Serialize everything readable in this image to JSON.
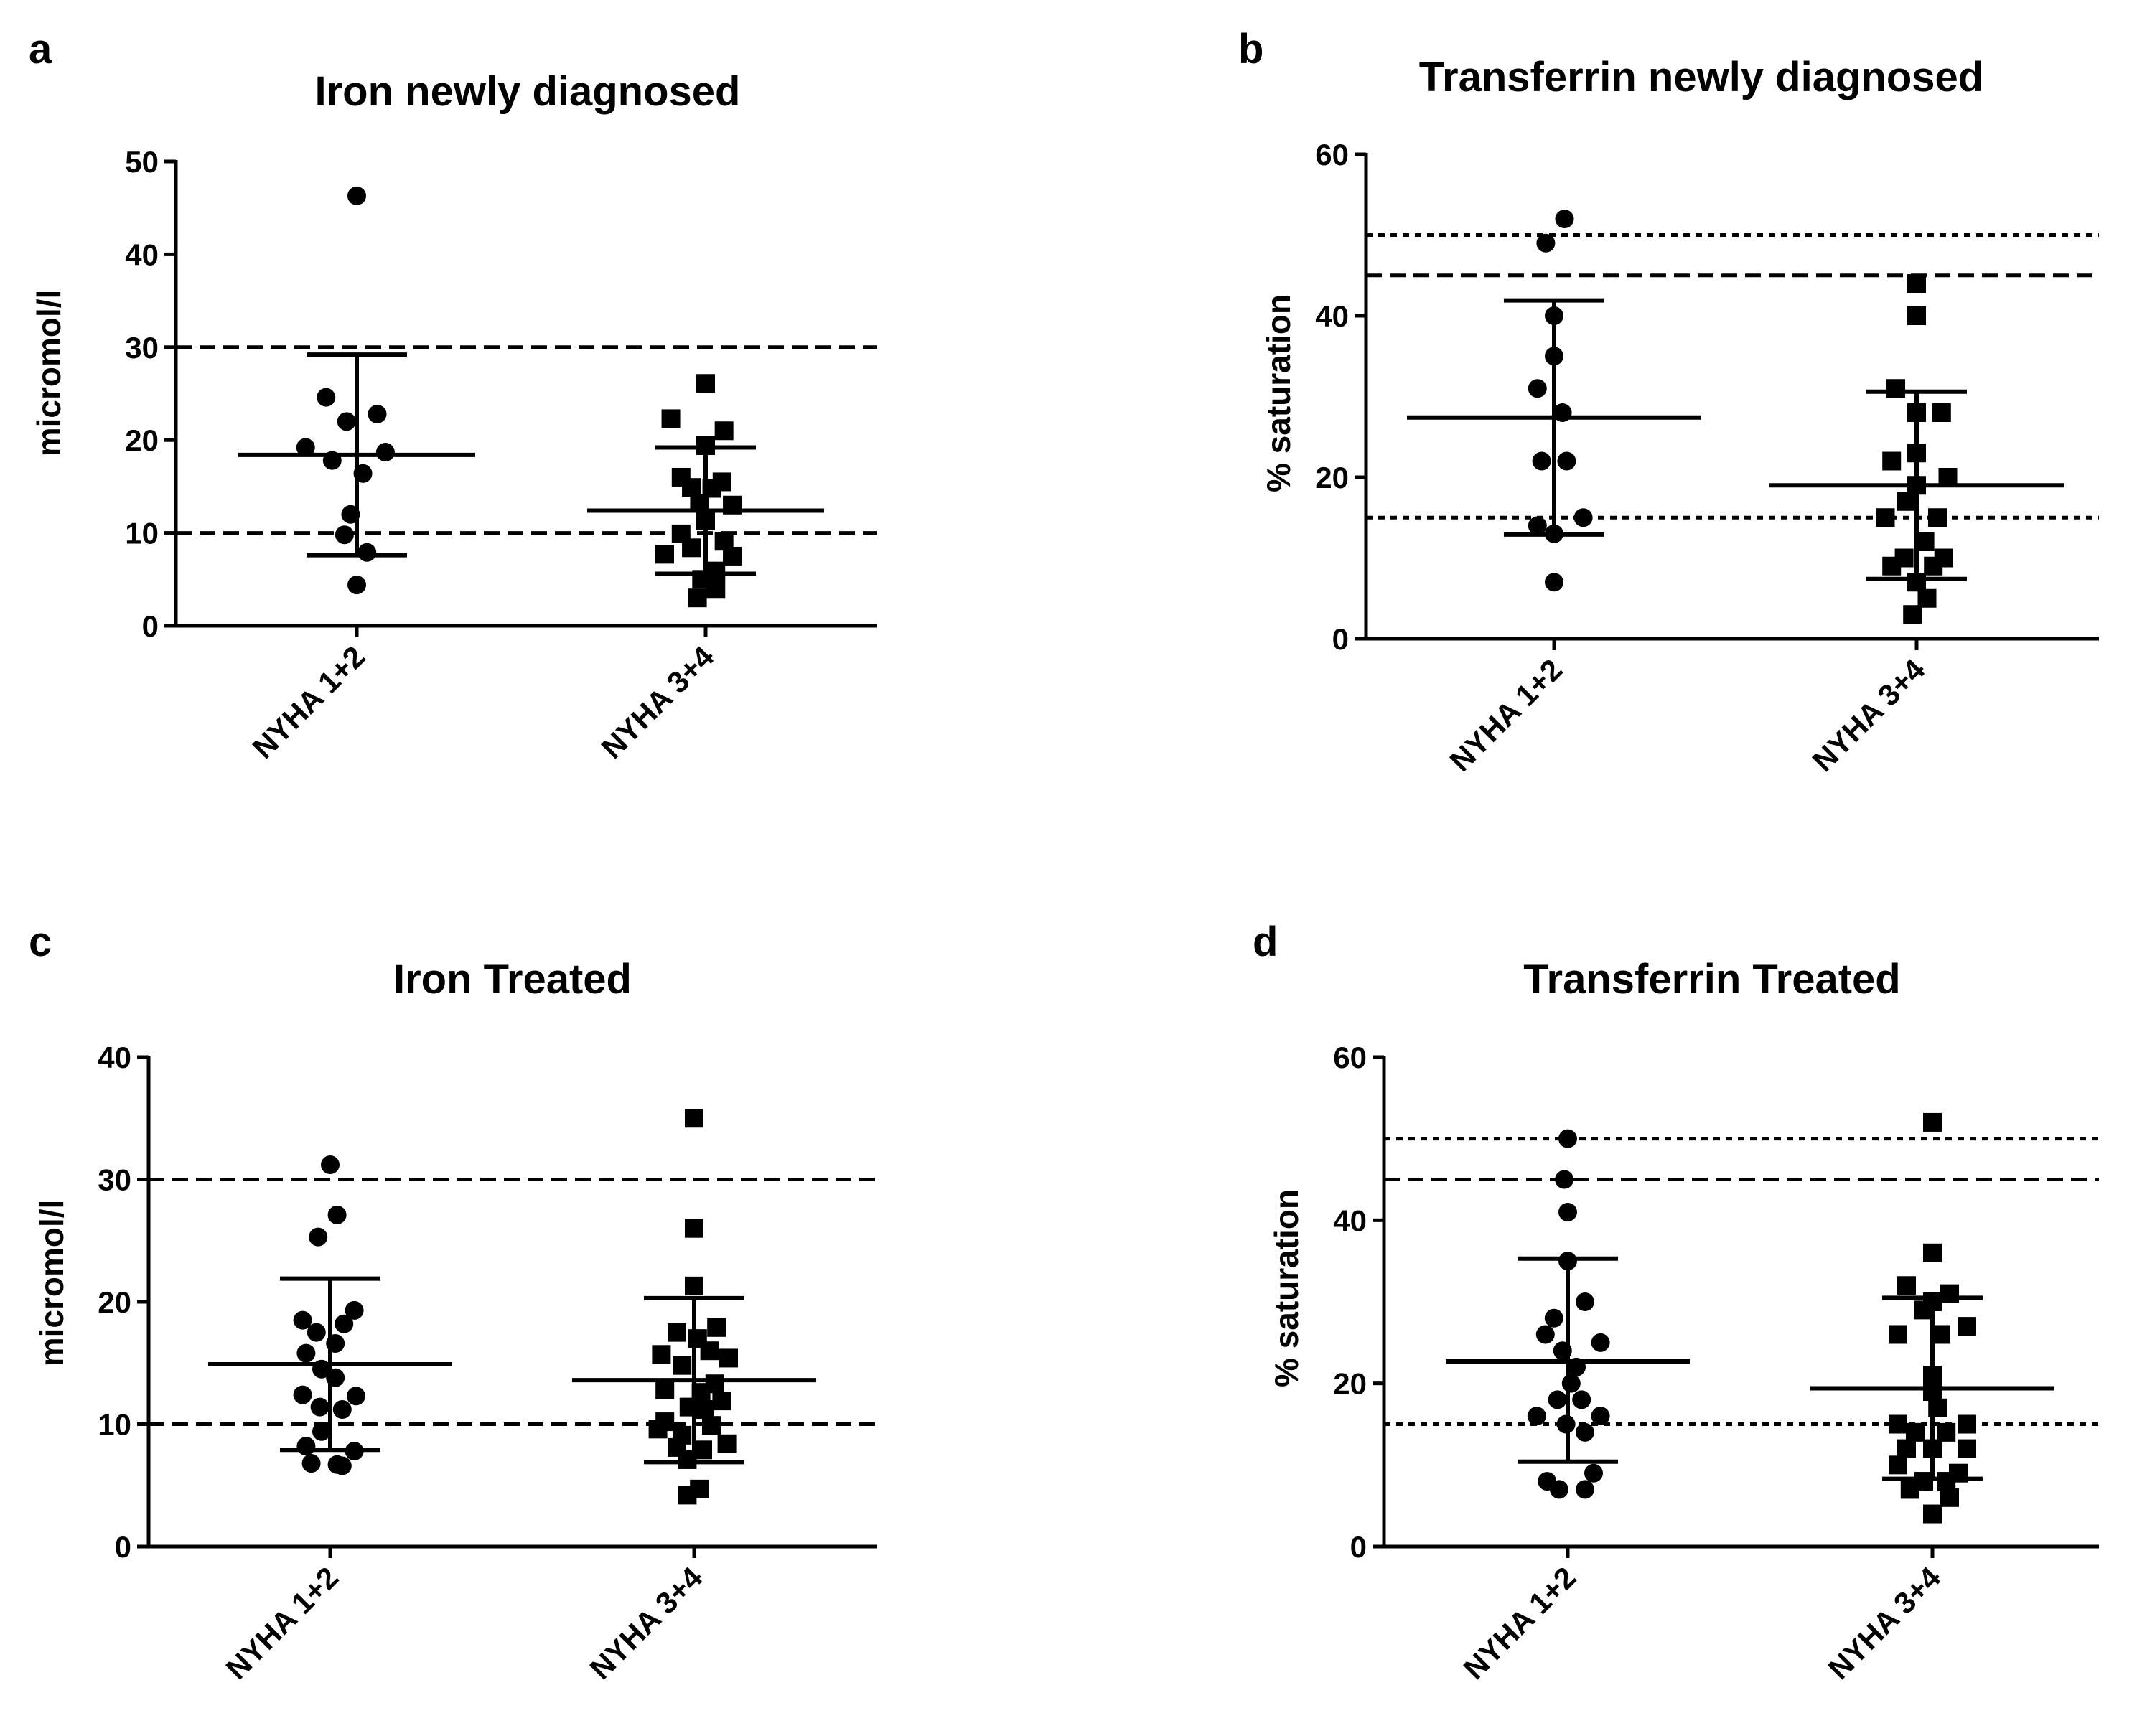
{
  "chart_data": [
    {
      "panel": "a",
      "type": "scatter",
      "title": "Iron newly diagnosed",
      "ylabel": "micromol/l",
      "ylim": [
        0,
        50
      ],
      "yticks": [
        "0",
        "10",
        "20",
        "30",
        "40",
        "50"
      ],
      "categories": [
        "NYHA 1+2",
        "NYHA 3+4"
      ],
      "reference_lines": [
        {
          "y": 30,
          "style": "dashed"
        },
        {
          "y": 10,
          "style": "dashed"
        }
      ],
      "series": [
        {
          "name": "NYHA 1+2",
          "marker": "circle",
          "mean": 18.4,
          "sd_low": 7.6,
          "sd_high": 29.2,
          "points": [
            [
              0.0,
              46.3
            ],
            [
              -0.15,
              24.6
            ],
            [
              0.1,
              22.8
            ],
            [
              -0.05,
              22.0
            ],
            [
              -0.25,
              19.2
            ],
            [
              0.14,
              18.7
            ],
            [
              -0.12,
              17.8
            ],
            [
              0.03,
              16.4
            ],
            [
              -0.03,
              12.0
            ],
            [
              -0.06,
              9.8
            ],
            [
              0.05,
              7.9
            ],
            [
              0.0,
              4.4
            ]
          ]
        },
        {
          "name": "NYHA 3+4",
          "marker": "square",
          "mean": 12.4,
          "sd_low": 5.6,
          "sd_high": 19.2,
          "points": [
            [
              0.0,
              26.1
            ],
            [
              -0.17,
              22.3
            ],
            [
              0.09,
              21.0
            ],
            [
              0.0,
              19.4
            ],
            [
              -0.12,
              16.0
            ],
            [
              0.08,
              15.5
            ],
            [
              -0.07,
              14.9
            ],
            [
              0.03,
              14.8
            ],
            [
              -0.03,
              13.2
            ],
            [
              0.13,
              13.0
            ],
            [
              0.0,
              11.3
            ],
            [
              -0.12,
              9.9
            ],
            [
              0.09,
              9.1
            ],
            [
              -0.07,
              8.4
            ],
            [
              0.13,
              7.5
            ],
            [
              -0.2,
              7.7
            ],
            [
              0.05,
              5.9
            ],
            [
              -0.02,
              5.0
            ],
            [
              0.05,
              4.0
            ],
            [
              -0.04,
              3.0
            ]
          ]
        }
      ]
    },
    {
      "panel": "b",
      "type": "scatter",
      "title": "Transferrin newly diagnosed",
      "ylabel": "% saturation",
      "ylim": [
        0,
        60
      ],
      "yticks": [
        "0",
        "20",
        "40",
        "60"
      ],
      "categories": [
        "NYHA 1+2",
        "NYHA 3+4"
      ],
      "reference_lines": [
        {
          "y": 50,
          "style": "dotted"
        },
        {
          "y": 45,
          "style": "dashed"
        },
        {
          "y": 15,
          "style": "dotted"
        }
      ],
      "series": [
        {
          "name": "NYHA 1+2",
          "marker": "circle",
          "mean": 27.4,
          "sd_low": 12.9,
          "sd_high": 41.9,
          "points": [
            [
              0.05,
              52.0
            ],
            [
              -0.04,
              49.0
            ],
            [
              0.0,
              40.0
            ],
            [
              0.0,
              35.0
            ],
            [
              -0.08,
              31.0
            ],
            [
              0.04,
              28.0
            ],
            [
              -0.06,
              22.0
            ],
            [
              0.06,
              22.0
            ],
            [
              -0.08,
              14.0
            ],
            [
              0.14,
              15.0
            ],
            [
              0.0,
              13.0
            ],
            [
              0.0,
              7.0
            ]
          ]
        },
        {
          "name": "NYHA 3+4",
          "marker": "square",
          "mean": 19.0,
          "sd_low": 7.4,
          "sd_high": 30.6,
          "points": [
            [
              0.0,
              44.0
            ],
            [
              0.0,
              40.0
            ],
            [
              -0.1,
              31.0
            ],
            [
              0.0,
              28.0
            ],
            [
              0.12,
              28.0
            ],
            [
              0.0,
              23.0
            ],
            [
              -0.12,
              22.0
            ],
            [
              0.0,
              19.0
            ],
            [
              0.15,
              20.0
            ],
            [
              -0.05,
              17.0
            ],
            [
              0.1,
              15.0
            ],
            [
              -0.15,
              15.0
            ],
            [
              0.04,
              12.0
            ],
            [
              -0.06,
              10.0
            ],
            [
              0.13,
              10.0
            ],
            [
              0.08,
              9.0
            ],
            [
              -0.12,
              9.0
            ],
            [
              0.0,
              7.0
            ],
            [
              0.05,
              5.0
            ],
            [
              -0.02,
              3.0
            ]
          ]
        }
      ]
    },
    {
      "panel": "c",
      "type": "scatter",
      "title": "Iron  Treated",
      "ylabel": "micromol/l",
      "ylim": [
        0,
        40
      ],
      "yticks": [
        "0",
        "10",
        "20",
        "30",
        "40"
      ],
      "categories": [
        "NYHA 1+2",
        "NYHA 3+4"
      ],
      "reference_lines": [
        {
          "y": 30,
          "style": "dashed"
        },
        {
          "y": 10,
          "style": "dashed"
        }
      ],
      "series": [
        {
          "name": "NYHA 1+2",
          "marker": "circle",
          "mean": 14.9,
          "sd_low": 7.9,
          "sd_high": 21.9,
          "points": [
            [
              0.0,
              31.2
            ],
            [
              0.04,
              27.1
            ],
            [
              -0.07,
              25.3
            ],
            [
              0.14,
              19.3
            ],
            [
              -0.16,
              18.5
            ],
            [
              0.08,
              18.2
            ],
            [
              -0.08,
              17.5
            ],
            [
              0.03,
              16.6
            ],
            [
              -0.14,
              15.8
            ],
            [
              -0.05,
              14.5
            ],
            [
              0.03,
              13.8
            ],
            [
              -0.16,
              12.4
            ],
            [
              0.15,
              12.3
            ],
            [
              -0.06,
              11.4
            ],
            [
              0.07,
              11.2
            ],
            [
              -0.05,
              9.4
            ],
            [
              -0.14,
              8.2
            ],
            [
              0.14,
              7.8
            ],
            [
              0.04,
              6.7
            ],
            [
              -0.11,
              6.8
            ],
            [
              0.07,
              6.6
            ]
          ]
        },
        {
          "name": "NYHA 3+4",
          "marker": "square",
          "mean": 13.6,
          "sd_low": 6.9,
          "sd_high": 20.3,
          "points": [
            [
              0.0,
              35.0
            ],
            [
              0.0,
              26.0
            ],
            [
              0.0,
              21.3
            ],
            [
              0.13,
              17.9
            ],
            [
              -0.1,
              17.5
            ],
            [
              0.02,
              17.0
            ],
            [
              0.09,
              16.0
            ],
            [
              -0.19,
              15.7
            ],
            [
              0.2,
              15.4
            ],
            [
              -0.07,
              14.8
            ],
            [
              0.12,
              13.3
            ],
            [
              -0.17,
              12.8
            ],
            [
              0.04,
              12.6
            ],
            [
              -0.03,
              11.4
            ],
            [
              0.06,
              11.2
            ],
            [
              0.16,
              11.9
            ],
            [
              -0.17,
              10.2
            ],
            [
              0.1,
              9.9
            ],
            [
              -0.07,
              9.1
            ],
            [
              -0.21,
              9.6
            ],
            [
              0.19,
              8.4
            ],
            [
              -0.1,
              8.1
            ],
            [
              0.05,
              7.9
            ],
            [
              -0.04,
              7.1
            ],
            [
              0.03,
              4.7
            ],
            [
              -0.04,
              4.2
            ]
          ]
        }
      ]
    },
    {
      "panel": "d",
      "type": "scatter",
      "title": "Transferrin  Treated",
      "ylabel": "% saturation",
      "ylim": [
        0,
        60
      ],
      "yticks": [
        "0",
        "20",
        "40",
        "60"
      ],
      "categories": [
        "NYHA 1+2",
        "NYHA 3+4"
      ],
      "reference_lines": [
        {
          "y": 50,
          "style": "dotted"
        },
        {
          "y": 45,
          "style": "dashed"
        },
        {
          "y": 15,
          "style": "dotted"
        }
      ],
      "series": [
        {
          "name": "NYHA 1+2",
          "marker": "circle",
          "mean": 22.7,
          "sd_low": 10.4,
          "sd_high": 35.3,
          "points": [
            [
              0.0,
              50.0
            ],
            [
              -0.02,
              45.0
            ],
            [
              0.0,
              41.0
            ],
            [
              0.0,
              35.0
            ],
            [
              0.1,
              30.0
            ],
            [
              -0.08,
              28.0
            ],
            [
              -0.13,
              26.0
            ],
            [
              0.19,
              25.0
            ],
            [
              -0.03,
              24.0
            ],
            [
              0.05,
              22.0
            ],
            [
              0.02,
              20.0
            ],
            [
              0.08,
              18.0
            ],
            [
              -0.06,
              18.0
            ],
            [
              -0.18,
              16.0
            ],
            [
              0.19,
              16.0
            ],
            [
              -0.01,
              15.0
            ],
            [
              0.1,
              14.0
            ],
            [
              0.15,
              9.0
            ],
            [
              -0.12,
              8.0
            ],
            [
              -0.05,
              7.0
            ],
            [
              0.1,
              7.0
            ]
          ]
        },
        {
          "name": "NYHA 3+4",
          "marker": "square",
          "mean": 19.4,
          "sd_low": 8.3,
          "sd_high": 30.5,
          "points": [
            [
              0.0,
              52.0
            ],
            [
              0.0,
              36.0
            ],
            [
              -0.15,
              32.0
            ],
            [
              0.1,
              31.0
            ],
            [
              0.0,
              30.0
            ],
            [
              -0.05,
              29.0
            ],
            [
              0.2,
              27.0
            ],
            [
              -0.2,
              26.0
            ],
            [
              0.05,
              26.0
            ],
            [
              0.0,
              21.0
            ],
            [
              0.0,
              19.0
            ],
            [
              0.03,
              17.0
            ],
            [
              -0.2,
              15.0
            ],
            [
              0.2,
              15.0
            ],
            [
              0.08,
              14.0
            ],
            [
              -0.1,
              14.0
            ],
            [
              -0.15,
              12.0
            ],
            [
              0.2,
              12.0
            ],
            [
              0.0,
              12.0
            ],
            [
              -0.2,
              10.0
            ],
            [
              0.15,
              9.0
            ],
            [
              -0.05,
              8.0
            ],
            [
              0.08,
              8.0
            ],
            [
              -0.13,
              7.0
            ],
            [
              0.1,
              6.0
            ],
            [
              0.0,
              4.0
            ]
          ]
        }
      ]
    }
  ]
}
